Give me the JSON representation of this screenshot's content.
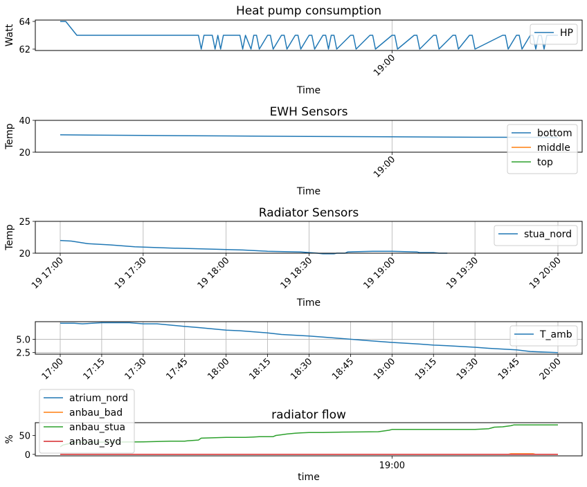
{
  "chart_data": [
    {
      "type": "line",
      "title": "Heat pump consumption",
      "xlabel": "Time",
      "ylabel": "Watt",
      "xlim": [
        "17:00",
        "20:00"
      ],
      "ylim": [
        61.9,
        64.1
      ],
      "yticks": [
        62,
        64
      ],
      "xticks": [
        "19:00"
      ],
      "grid": "x",
      "legend_placement": "top-right",
      "series": [
        {
          "name": "HP",
          "color": "#1f77b4",
          "x": [
            "17:00",
            "17:02",
            "17:06",
            "17:50",
            "17:51",
            "17:52",
            "17:55",
            "17:56",
            "17:57",
            "17:58",
            "17:59",
            "18:00",
            "18:05",
            "18:06",
            "18:07",
            "18:09",
            "18:10",
            "18:11",
            "18:12",
            "18:15",
            "18:16",
            "18:17",
            "18:20",
            "18:21",
            "18:22",
            "18:25",
            "18:26",
            "18:27",
            "18:30",
            "18:31",
            "18:32",
            "18:35",
            "18:36",
            "18:37",
            "18:38",
            "18:39",
            "18:40",
            "18:45",
            "18:46",
            "18:47",
            "18:52",
            "18:53",
            "18:54",
            "19:00",
            "19:01",
            "19:02",
            "19:08",
            "19:09",
            "19:10",
            "19:15",
            "19:16",
            "19:17",
            "19:22",
            "19:23",
            "19:24",
            "19:28",
            "19:29",
            "19:30",
            "19:40",
            "19:41",
            "19:42",
            "19:45",
            "19:46",
            "19:47",
            "19:50",
            "19:51",
            "19:52",
            "19:53",
            "19:54",
            "19:55",
            "19:56",
            "19:57",
            "20:00"
          ],
          "y": [
            64,
            64,
            63,
            63,
            62,
            63,
            63,
            62,
            63,
            62,
            63,
            63,
            63,
            62,
            63,
            62,
            63,
            63,
            62,
            63,
            63,
            62,
            63,
            63,
            62,
            63,
            63,
            62,
            63,
            63,
            62,
            63,
            63,
            62,
            63,
            63,
            62,
            63,
            63,
            62,
            63,
            63,
            62,
            63,
            63,
            62,
            63,
            63,
            62,
            63,
            63,
            62,
            63,
            63,
            62,
            63,
            63,
            62,
            63,
            63,
            62,
            63,
            63,
            62,
            63,
            63,
            62,
            63,
            63,
            62,
            63,
            63,
            63
          ]
        }
      ]
    },
    {
      "type": "line",
      "title": "EWH Sensors",
      "xlabel": "Time",
      "ylabel": "Temp",
      "xlim": [
        "17:00",
        "20:00"
      ],
      "ylim": [
        20,
        40
      ],
      "yticks": [
        20,
        40
      ],
      "xticks": [
        "19:00"
      ],
      "grid": "x",
      "legend_placement": "top-right",
      "series": [
        {
          "name": "bottom",
          "color": "#1f77b4",
          "x": [
            "17:00",
            "17:30",
            "18:00",
            "18:30",
            "19:00",
            "19:30",
            "20:00"
          ],
          "y": [
            30.9,
            30.5,
            30.2,
            29.9,
            29.7,
            29.4,
            29.3
          ]
        },
        {
          "name": "middle",
          "color": "#ff7f0e",
          "x": [],
          "y": []
        },
        {
          "name": "top",
          "color": "#2ca02c",
          "x": [],
          "y": []
        }
      ]
    },
    {
      "type": "line",
      "title": "Radiator Sensors",
      "xlabel": "Time",
      "ylabel": "Temp",
      "xlim": [
        "17:00",
        "20:00"
      ],
      "ylim": [
        20,
        25
      ],
      "yticks": [
        20,
        25
      ],
      "xticks": [
        "19 17:00",
        "19 17:30",
        "19 18:00",
        "19 18:30",
        "19 19:00",
        "19 19:30",
        "19 20:00"
      ],
      "grid": "both",
      "legend_placement": "top-right",
      "series": [
        {
          "name": "stua_nord",
          "color": "#1f77b4",
          "x": [
            "17:00",
            "17:04",
            "17:07",
            "17:10",
            "17:18",
            "17:27",
            "17:40",
            "17:58",
            "18:06",
            "18:15",
            "18:27",
            "18:33",
            "18:35",
            "18:39",
            "18:40",
            "18:43",
            "18:44",
            "18:53",
            "19:00",
            "19:09",
            "19:10",
            "19:15",
            "19:17",
            "19:20"
          ],
          "y": [
            22.0,
            21.9,
            21.7,
            21.5,
            21.3,
            21.0,
            20.8,
            20.6,
            20.5,
            20.3,
            20.2,
            20.0,
            19.9,
            19.9,
            20.0,
            20.0,
            20.2,
            20.3,
            20.3,
            20.2,
            20.1,
            20.1,
            20.0,
            20.0
          ]
        }
      ]
    },
    {
      "type": "line",
      "title": "",
      "xlabel": "",
      "ylabel": "",
      "xlim": [
        "17:00",
        "20:00"
      ],
      "ylim": [
        2.2,
        8.3
      ],
      "yticks": [
        2.5,
        5.0
      ],
      "xticks": [
        "17:00",
        "17:15",
        "17:30",
        "17:45",
        "18:00",
        "18:15",
        "18:30",
        "18:45",
        "19:00",
        "19:15",
        "19:30",
        "19:45",
        "20:00"
      ],
      "grid": "both",
      "legend_placement": "top-right",
      "series": [
        {
          "name": "T_amb",
          "color": "#1f77b4",
          "x": [
            "17:00",
            "17:05",
            "17:08",
            "17:15",
            "17:25",
            "17:30",
            "17:35",
            "17:45",
            "17:50",
            "18:00",
            "18:05",
            "18:15",
            "18:20",
            "18:30",
            "18:35",
            "18:45",
            "18:50",
            "19:00",
            "19:10",
            "19:15",
            "19:20",
            "19:30",
            "19:35",
            "19:45",
            "19:50",
            "20:00"
          ],
          "y": [
            8.0,
            8.0,
            7.9,
            8.1,
            8.1,
            7.9,
            7.9,
            7.4,
            7.2,
            6.7,
            6.6,
            6.2,
            5.9,
            5.6,
            5.4,
            5.0,
            4.8,
            4.4,
            4.1,
            3.9,
            3.8,
            3.5,
            3.3,
            3.0,
            2.7,
            2.5
          ]
        }
      ]
    },
    {
      "type": "line",
      "title": "radiator flow",
      "xlabel": "time",
      "ylabel": "%",
      "xlim": [
        "17:00",
        "20:00"
      ],
      "ylim": [
        -4,
        84
      ],
      "yticks": [
        0,
        50
      ],
      "xticks": [
        "19:00"
      ],
      "grid": "none",
      "legend_placement": "upper-left-outside",
      "series": [
        {
          "name": "atrium_nord",
          "color": "#1f77b4",
          "x": [
            "17:00",
            "20:00"
          ],
          "y": [
            0,
            0
          ]
        },
        {
          "name": "anbau_bad",
          "color": "#ff7f0e",
          "x": [
            "17:00",
            "19:42",
            "19:43",
            "19:51",
            "19:52",
            "20:00"
          ],
          "y": [
            0,
            0,
            1.5,
            1.5,
            0,
            0
          ]
        },
        {
          "name": "anbau_stua",
          "color": "#2ca02c",
          "x": [
            "17:00",
            "17:01",
            "17:03",
            "17:05",
            "17:30",
            "17:40",
            "17:45",
            "17:46",
            "17:50",
            "17:51",
            "18:00",
            "18:07",
            "18:10",
            "18:12",
            "18:17",
            "18:18",
            "18:20",
            "18:22",
            "18:25",
            "18:27",
            "18:30",
            "18:35",
            "18:42",
            "18:55",
            "18:57",
            "18:59",
            "19:00",
            "19:05",
            "19:30",
            "19:35",
            "19:36",
            "19:37",
            "19:40",
            "19:43",
            "19:44",
            "20:00"
          ],
          "y": [
            20,
            25,
            28,
            32,
            33,
            35,
            35,
            36,
            38,
            43,
            45,
            45,
            46,
            47,
            47,
            50,
            52,
            54,
            56,
            57,
            58,
            58,
            59,
            60,
            62,
            64,
            66,
            66,
            66,
            68,
            70,
            72,
            73,
            76,
            78,
            78
          ]
        },
        {
          "name": "anbau_syd",
          "color": "#d62728",
          "x": [
            "17:00",
            "20:00"
          ],
          "y": [
            0,
            0
          ]
        }
      ]
    }
  ]
}
